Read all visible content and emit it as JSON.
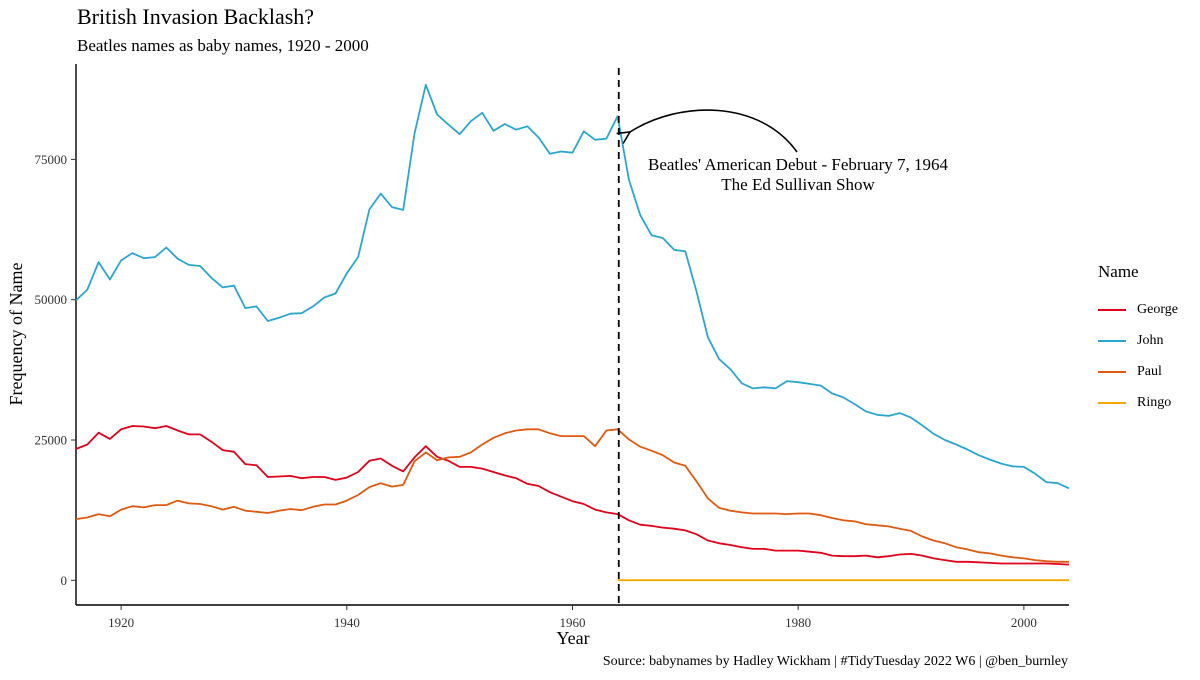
{
  "title": "British Invasion Backlash?",
  "subtitle": "Beatles names as baby names, 1920 - 2000",
  "caption": "Source: babynames by Hadley Wickham | #TidyTuesday 2022 W6 | @ben_burnley",
  "annotation": {
    "line1": "Beatles' American Debut - February 7, 1964",
    "line2": "The Ed Sullivan Show",
    "x": 1964.1
  },
  "legend": {
    "title": "Name"
  },
  "chart_data": {
    "type": "line",
    "title": "British Invasion Backlash?",
    "subtitle": "Beatles names as baby names, 1920 - 2000",
    "xlabel": "Year",
    "ylabel": "Frequency of Name",
    "xlim": [
      1916,
      2004
    ],
    "ylim": [
      -4400,
      92000
    ],
    "x_ticks": [
      1920,
      1940,
      1960,
      1980,
      2000
    ],
    "y_ticks": [
      0,
      25000,
      50000,
      75000
    ],
    "y_tick_labels": [
      "0",
      "25000",
      "50000",
      "75000"
    ],
    "grid": false,
    "legend_position": "right",
    "vline": 1964.1,
    "series": [
      {
        "name": "George",
        "color": "#e3001b",
        "x": [
          1916,
          1917,
          1918,
          1919,
          1920,
          1921,
          1922,
          1923,
          1924,
          1925,
          1926,
          1927,
          1928,
          1929,
          1930,
          1931,
          1932,
          1933,
          1934,
          1935,
          1936,
          1937,
          1938,
          1939,
          1940,
          1941,
          1942,
          1943,
          1944,
          1945,
          1946,
          1947,
          1948,
          1949,
          1950,
          1951,
          1952,
          1953,
          1954,
          1955,
          1956,
          1957,
          1958,
          1959,
          1960,
          1961,
          1962,
          1963,
          1964,
          1965,
          1966,
          1967,
          1968,
          1969,
          1970,
          1971,
          1972,
          1973,
          1974,
          1975,
          1976,
          1977,
          1978,
          1979,
          1980,
          1981,
          1982,
          1983,
          1984,
          1985,
          1986,
          1987,
          1988,
          1989,
          1990,
          1991,
          1992,
          1993,
          1994,
          1995,
          1996,
          1997,
          1998,
          1999,
          2000,
          2001,
          2002,
          2003,
          2004
        ],
        "values": [
          23400,
          24200,
          26300,
          25200,
          26900,
          27500,
          27400,
          27100,
          27500,
          26700,
          26000,
          26000,
          24700,
          23200,
          22900,
          20700,
          20500,
          18400,
          18500,
          18600,
          18200,
          18400,
          18400,
          17900,
          18300,
          19300,
          21300,
          21700,
          20400,
          19400,
          21900,
          23900,
          22000,
          21300,
          20200,
          20200,
          19900,
          19300,
          18700,
          18200,
          17200,
          16800,
          15700,
          14900,
          14100,
          13600,
          12600,
          12100,
          11800,
          10700,
          9900,
          9700,
          9400,
          9200,
          8900,
          8200,
          7100,
          6600,
          6300,
          5900,
          5600,
          5600,
          5300,
          5300,
          5300,
          5100,
          4900,
          4400,
          4300,
          4300,
          4400,
          4100,
          4300,
          4600,
          4700,
          4400,
          3900,
          3600,
          3300,
          3300,
          3200,
          3100,
          3000,
          3000,
          3000,
          3000,
          3000,
          2900,
          2800
        ]
      },
      {
        "name": "John",
        "color": "#2aa7d1",
        "x": [
          1916,
          1917,
          1918,
          1919,
          1920,
          1921,
          1922,
          1923,
          1924,
          1925,
          1926,
          1927,
          1928,
          1929,
          1930,
          1931,
          1932,
          1933,
          1934,
          1935,
          1936,
          1937,
          1938,
          1939,
          1940,
          1941,
          1942,
          1943,
          1944,
          1945,
          1946,
          1947,
          1948,
          1949,
          1950,
          1951,
          1952,
          1953,
          1954,
          1955,
          1956,
          1957,
          1958,
          1959,
          1960,
          1961,
          1962,
          1963,
          1964,
          1965,
          1966,
          1967,
          1968,
          1969,
          1970,
          1971,
          1972,
          1973,
          1974,
          1975,
          1976,
          1977,
          1978,
          1979,
          1980,
          1981,
          1982,
          1983,
          1984,
          1985,
          1986,
          1987,
          1988,
          1989,
          1990,
          1991,
          1992,
          1993,
          1994,
          1995,
          1996,
          1997,
          1998,
          1999,
          2000,
          2001,
          2002,
          2003,
          2004
        ],
        "values": [
          49900,
          51800,
          56700,
          53600,
          57000,
          58300,
          57400,
          57600,
          59300,
          57300,
          56200,
          56000,
          53900,
          52200,
          52500,
          48500,
          48800,
          46200,
          46800,
          47500,
          47600,
          48800,
          50400,
          51100,
          54700,
          57600,
          66100,
          68900,
          66500,
          66000,
          79600,
          88300,
          83000,
          81200,
          79500,
          81800,
          83300,
          80100,
          81300,
          80300,
          80900,
          78900,
          76000,
          76400,
          76200,
          80000,
          78500,
          78700,
          82700,
          71400,
          65100,
          61500,
          61000,
          58900,
          58600,
          51400,
          43300,
          39400,
          37600,
          35100,
          34200,
          34400,
          34200,
          35500,
          35300,
          35000,
          34700,
          33300,
          32600,
          31400,
          30100,
          29500,
          29300,
          29800,
          29000,
          27600,
          26100,
          25000,
          24200,
          23300,
          22300,
          21500,
          20800,
          20300,
          20200,
          19000,
          17500,
          17300,
          16400
        ]
      },
      {
        "name": "Paul",
        "color": "#e05a10",
        "x": [
          1916,
          1917,
          1918,
          1919,
          1920,
          1921,
          1922,
          1923,
          1924,
          1925,
          1926,
          1927,
          1928,
          1929,
          1930,
          1931,
          1932,
          1933,
          1934,
          1935,
          1936,
          1937,
          1938,
          1939,
          1940,
          1941,
          1942,
          1943,
          1944,
          1945,
          1946,
          1947,
          1948,
          1949,
          1950,
          1951,
          1952,
          1953,
          1954,
          1955,
          1956,
          1957,
          1958,
          1959,
          1960,
          1961,
          1962,
          1963,
          1964,
          1965,
          1966,
          1967,
          1968,
          1969,
          1970,
          1971,
          1972,
          1973,
          1974,
          1975,
          1976,
          1977,
          1978,
          1979,
          1980,
          1981,
          1982,
          1983,
          1984,
          1985,
          1986,
          1987,
          1988,
          1989,
          1990,
          1991,
          1992,
          1993,
          1994,
          1995,
          1996,
          1997,
          1998,
          1999,
          2000,
          2001,
          2002,
          2003,
          2004
        ],
        "values": [
          10900,
          11200,
          11800,
          11400,
          12600,
          13200,
          13000,
          13400,
          13400,
          14200,
          13700,
          13600,
          13200,
          12600,
          13100,
          12400,
          12200,
          12000,
          12400,
          12700,
          12500,
          13100,
          13500,
          13500,
          14200,
          15200,
          16600,
          17300,
          16700,
          17000,
          21200,
          22800,
          21400,
          21900,
          22000,
          22800,
          24200,
          25400,
          26200,
          26700,
          26900,
          26900,
          26200,
          25700,
          25700,
          25700,
          23900,
          26700,
          26900,
          25100,
          23800,
          23100,
          22300,
          21000,
          20400,
          17600,
          14600,
          12900,
          12400,
          12100,
          11900,
          11900,
          11900,
          11800,
          11900,
          11900,
          11600,
          11100,
          10700,
          10500,
          10000,
          9800,
          9600,
          9200,
          8800,
          7800,
          7100,
          6600,
          5900,
          5500,
          5000,
          4800,
          4400,
          4100,
          3900,
          3600,
          3400,
          3300,
          3300
        ]
      },
      {
        "name": "Ringo",
        "color": "#f5a800",
        "x": [
          1964,
          2004
        ],
        "values": [
          15,
          15
        ]
      }
    ]
  }
}
